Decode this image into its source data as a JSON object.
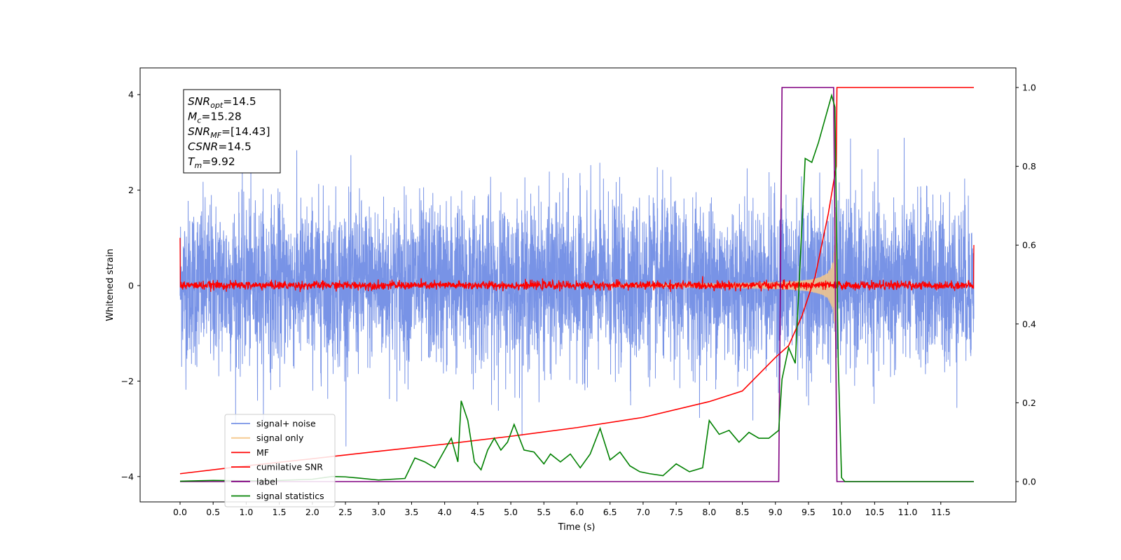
{
  "chart_data": {
    "type": "line",
    "xlabel": "Time (s)",
    "ylabel": "Whitened strain",
    "xlim": [
      -0.6,
      12.3
    ],
    "ylim": [
      -4.55,
      4.6
    ],
    "y2lim": [
      -0.05,
      1.03
    ],
    "x_ticks": [
      0.0,
      0.5,
      1.0,
      1.5,
      2.0,
      2.5,
      3.0,
      3.5,
      4.0,
      4.5,
      5.0,
      5.5,
      6.0,
      6.5,
      7.0,
      7.5,
      8.0,
      8.5,
      9.0,
      9.5,
      10.0,
      10.5,
      11.0,
      11.5
    ],
    "x_tick_labels": [
      "0.0",
      "0.5",
      "1.0",
      "1.5",
      "2.0",
      "2.5",
      "3.0",
      "3.5",
      "4.0",
      "4.5",
      "5.0",
      "5.5",
      "6.0",
      "6.5",
      "7.0",
      "7.5",
      "8.0",
      "8.5",
      "9.0",
      "9.5",
      "10.0",
      "10.5",
      "11.0",
      "11.5"
    ],
    "y_ticks": [
      -4,
      -2,
      0,
      2,
      4
    ],
    "y_tick_labels": [
      "−4",
      "−2",
      "0",
      "2",
      "4"
    ],
    "y2_ticks": [
      0.0,
      0.2,
      0.4,
      0.6,
      0.8,
      1.0
    ],
    "y2_tick_labels": [
      "0.0",
      "0.2",
      "0.4",
      "0.6",
      "0.8",
      "1.0"
    ],
    "grid": false,
    "legend_position": "lower-left",
    "time_span": [
      0.0,
      12.0
    ],
    "merger_time": 9.92,
    "series": [
      {
        "name": "signal+ noise",
        "axis": "left",
        "color": "#7893e6",
        "kind": "noise",
        "typical_range": [
          -2.0,
          2.2
        ],
        "extreme_range": [
          -4.1,
          4.2
        ]
      },
      {
        "name": "signal only",
        "axis": "left",
        "color": "#f5c78a",
        "kind": "chirp",
        "peak_amplitude": 1.6,
        "visible_from": 7.8,
        "end_time": 9.92
      },
      {
        "name": "MF",
        "axis": "left",
        "color": "#ff0000",
        "kind": "noise",
        "typical_range": [
          -0.08,
          0.1
        ],
        "start_value": 1.0,
        "end_value": 0.85
      },
      {
        "name": "cumilative SNR",
        "axis": "right",
        "color": "#ff0000",
        "points": [
          [
            0.0,
            0.02
          ],
          [
            1.0,
            0.04
          ],
          [
            2.0,
            0.058
          ],
          [
            3.0,
            0.077
          ],
          [
            4.0,
            0.095
          ],
          [
            5.0,
            0.115
          ],
          [
            6.0,
            0.137
          ],
          [
            7.0,
            0.163
          ],
          [
            8.0,
            0.203
          ],
          [
            8.5,
            0.23
          ],
          [
            9.0,
            0.315
          ],
          [
            9.2,
            0.345
          ],
          [
            9.4,
            0.42
          ],
          [
            9.6,
            0.52
          ],
          [
            9.8,
            0.68
          ],
          [
            9.92,
            0.8
          ],
          [
            9.93,
            1.0
          ],
          [
            12.0,
            1.0
          ]
        ]
      },
      {
        "name": "label",
        "axis": "right",
        "color": "#800080",
        "points": [
          [
            0.0,
            0.0
          ],
          [
            9.05,
            0.0
          ],
          [
            9.1,
            1.0
          ],
          [
            9.88,
            1.0
          ],
          [
            9.93,
            0.0
          ],
          [
            12.0,
            0.0
          ]
        ]
      },
      {
        "name": "signal statistics",
        "axis": "right",
        "color": "#008000",
        "points": [
          [
            0.0,
            0.001
          ],
          [
            0.5,
            0.003
          ],
          [
            1.0,
            0.002
          ],
          [
            1.5,
            0.003
          ],
          [
            2.0,
            0.006
          ],
          [
            2.3,
            0.013
          ],
          [
            2.5,
            0.012
          ],
          [
            2.7,
            0.009
          ],
          [
            3.0,
            0.004
          ],
          [
            3.2,
            0.006
          ],
          [
            3.4,
            0.008
          ],
          [
            3.55,
            0.06
          ],
          [
            3.7,
            0.05
          ],
          [
            3.85,
            0.035
          ],
          [
            4.0,
            0.08
          ],
          [
            4.1,
            0.11
          ],
          [
            4.2,
            0.05
          ],
          [
            4.25,
            0.205
          ],
          [
            4.35,
            0.155
          ],
          [
            4.45,
            0.05
          ],
          [
            4.55,
            0.03
          ],
          [
            4.65,
            0.08
          ],
          [
            4.75,
            0.11
          ],
          [
            4.85,
            0.08
          ],
          [
            4.95,
            0.1
          ],
          [
            5.05,
            0.145
          ],
          [
            5.2,
            0.08
          ],
          [
            5.35,
            0.075
          ],
          [
            5.5,
            0.045
          ],
          [
            5.6,
            0.07
          ],
          [
            5.75,
            0.05
          ],
          [
            5.9,
            0.07
          ],
          [
            6.05,
            0.035
          ],
          [
            6.2,
            0.07
          ],
          [
            6.35,
            0.135
          ],
          [
            6.5,
            0.055
          ],
          [
            6.65,
            0.075
          ],
          [
            6.8,
            0.04
          ],
          [
            6.95,
            0.025
          ],
          [
            7.1,
            0.02
          ],
          [
            7.3,
            0.015
          ],
          [
            7.5,
            0.045
          ],
          [
            7.7,
            0.025
          ],
          [
            7.9,
            0.035
          ],
          [
            8.0,
            0.155
          ],
          [
            8.15,
            0.12
          ],
          [
            8.3,
            0.13
          ],
          [
            8.45,
            0.1
          ],
          [
            8.6,
            0.125
          ],
          [
            8.75,
            0.11
          ],
          [
            8.9,
            0.11
          ],
          [
            9.05,
            0.13
          ],
          [
            9.1,
            0.26
          ],
          [
            9.2,
            0.34
          ],
          [
            9.3,
            0.3
          ],
          [
            9.45,
            0.82
          ],
          [
            9.55,
            0.81
          ],
          [
            9.65,
            0.86
          ],
          [
            9.75,
            0.92
          ],
          [
            9.85,
            0.98
          ],
          [
            9.9,
            0.95
          ],
          [
            9.95,
            0.3
          ],
          [
            10.0,
            0.01
          ],
          [
            10.05,
            0.0
          ],
          [
            12.0,
            0.0
          ]
        ]
      }
    ],
    "annotation": {
      "lines": [
        {
          "name": "SNR",
          "sub": "opt",
          "value": "=14.5"
        },
        {
          "name": "M",
          "sub": "c",
          "value": "=15.28"
        },
        {
          "name": "SNR",
          "sub": "MF",
          "value": "=[14.43]"
        },
        {
          "name": "CSNR",
          "sub": "",
          "value": "=14.5"
        },
        {
          "name": "T",
          "sub": "m",
          "value": "=9.92"
        }
      ]
    }
  }
}
